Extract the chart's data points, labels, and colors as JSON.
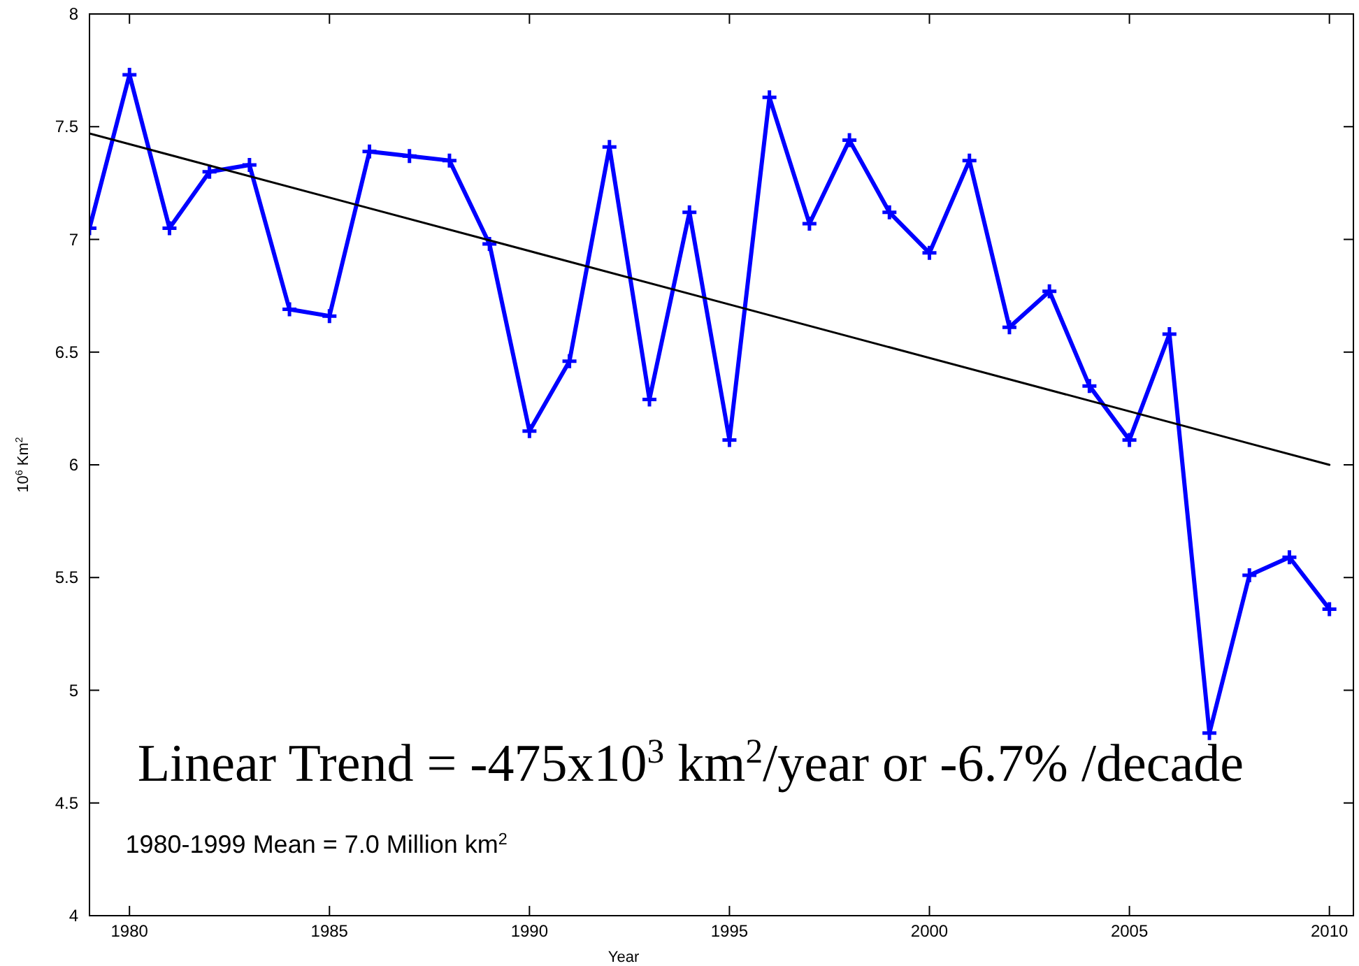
{
  "chart_data": {
    "type": "line",
    "xlabel": "Year",
    "ylabel": "10$^{6}$ Km$^{2}$",
    "xlim": [
      1979,
      2010.6
    ],
    "xticks": [
      1980,
      1985,
      1990,
      1995,
      2000,
      2005,
      2010
    ],
    "ylim": [
      4,
      8
    ],
    "yticks": [
      4,
      4.5,
      5,
      5.5,
      6,
      6.5,
      7,
      7.5,
      8
    ],
    "marker": "cross",
    "line_style": "solid",
    "series": [
      {
        "color": "#0000ff",
        "x": [
          1979,
          1980,
          1981,
          1982,
          1983,
          1984,
          1985,
          1986,
          1987,
          1988,
          1989,
          1990,
          1991,
          1992,
          1993,
          1994,
          1995,
          1996,
          1997,
          1998,
          1999,
          2000,
          2001,
          2002,
          2003,
          2004,
          2005,
          2006,
          2007,
          2008,
          2009,
          2010
        ],
        "values": [
          7.05,
          7.73,
          7.05,
          7.3,
          7.33,
          6.69,
          6.66,
          7.39,
          7.37,
          7.35,
          6.98,
          6.15,
          6.46,
          7.41,
          6.29,
          7.12,
          6.11,
          7.63,
          7.07,
          7.44,
          7.12,
          6.94,
          7.35,
          6.61,
          6.77,
          6.35,
          6.11,
          6.58,
          4.81,
          5.51,
          5.59,
          5.36
        ]
      },
      {
        "type": "line",
        "color": "#000000",
        "marker": "none",
        "x": [
          1979,
          2010
        ],
        "values": [
          7.47,
          6.0
        ]
      }
    ],
    "annotations": [
      "Linear Trend = -475x10$^{3}$ km$^{2}$/year or -6.7% /decade",
      "1980-1999 Mean = 7.0 Million km$^{2}$"
    ]
  }
}
